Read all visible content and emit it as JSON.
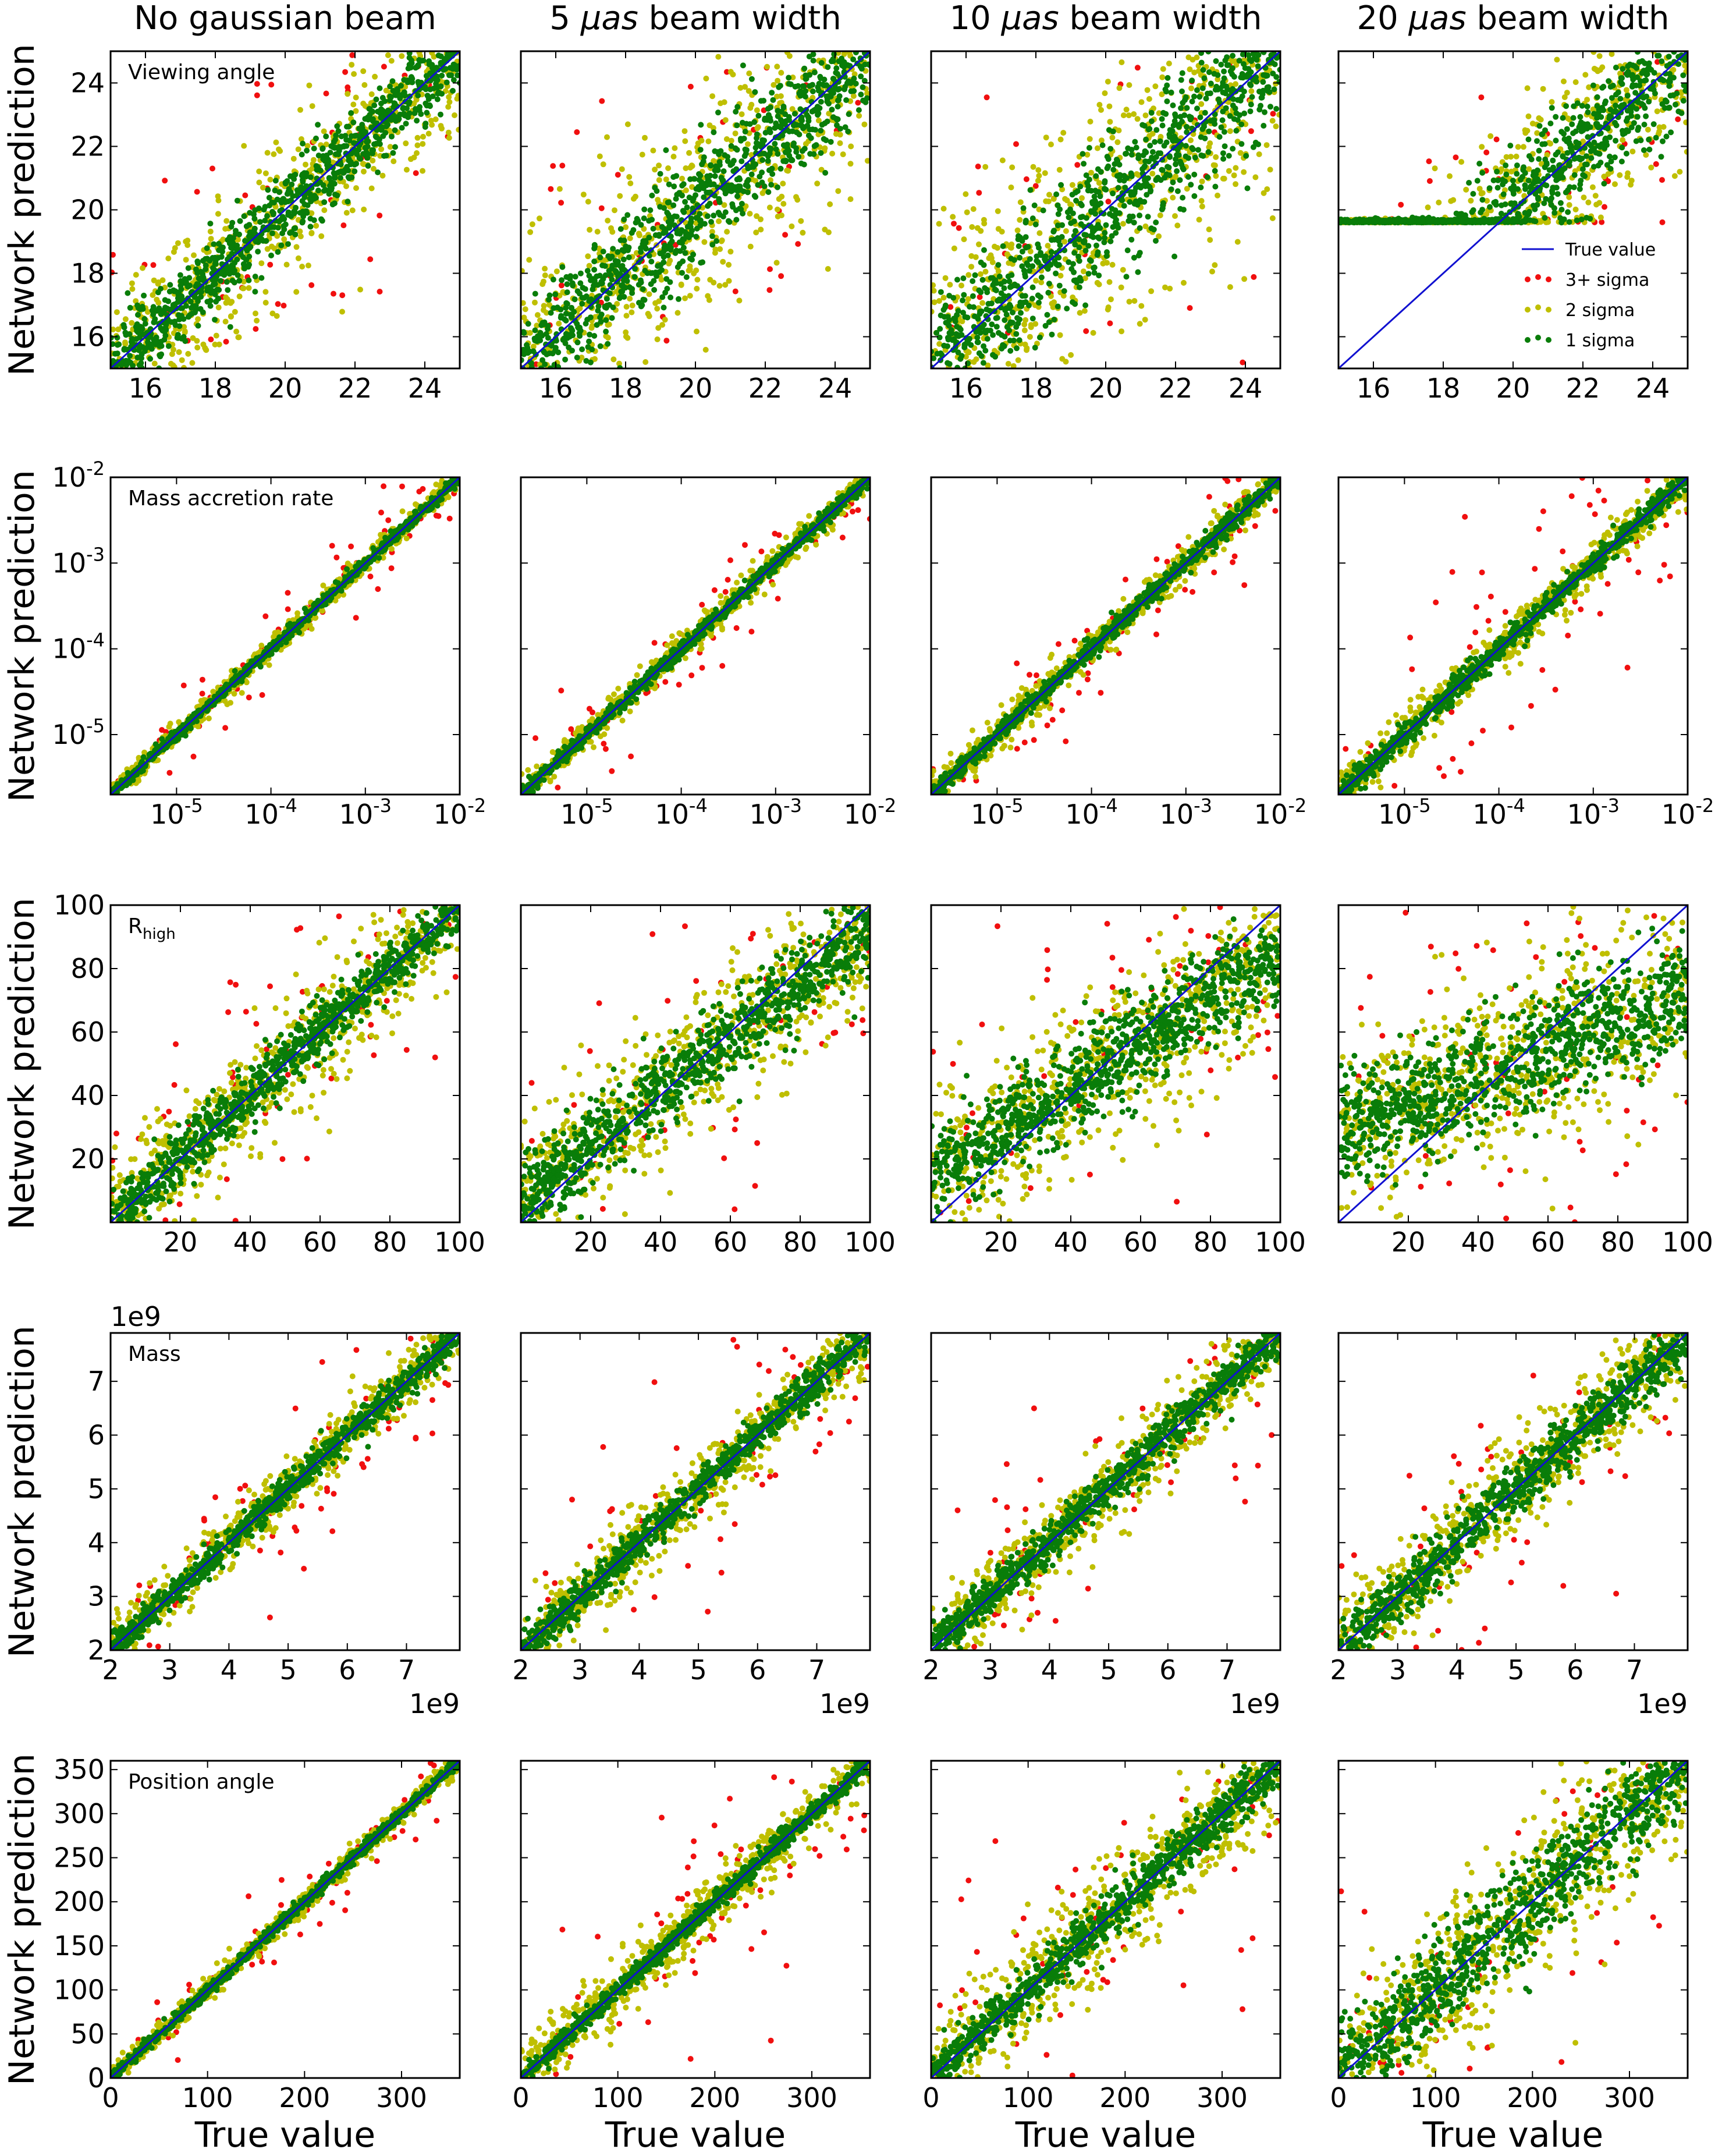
{
  "figure": {
    "column_titles": [
      {
        "pre": "No gaussian beam",
        "mu": "",
        "post": ""
      },
      {
        "pre": "5 ",
        "mu": "μas",
        "post": " beam width"
      },
      {
        "pre": "10 ",
        "mu": "μas",
        "post": " beam width"
      },
      {
        "pre": "20 ",
        "mu": "μas",
        "post": " beam width"
      }
    ],
    "ylabel": "Network prediction",
    "xlabel": "True value",
    "colors": {
      "three_sigma": "#f00f0f",
      "two_sigma": "#bfbf00",
      "one_sigma": "#097d09",
      "true_value": "#1010d0"
    },
    "legend": {
      "panel": "row0-col3",
      "entries": [
        {
          "label": "True value",
          "kind": "line",
          "color_key": "true_value"
        },
        {
          "label": "3+ sigma",
          "kind": "dots",
          "color_key": "three_sigma"
        },
        {
          "label": "2 sigma",
          "kind": "dots",
          "color_key": "two_sigma"
        },
        {
          "label": "1 sigma",
          "kind": "dots",
          "color_key": "one_sigma"
        }
      ]
    }
  },
  "chart_data": [
    {
      "type": "scatter",
      "parameter": "Viewing angle",
      "panel_label": "Viewing angle",
      "scale": "linear",
      "xlim": [
        15,
        25
      ],
      "ylim": [
        15,
        25
      ],
      "xticks": [
        16,
        18,
        20,
        22,
        24
      ],
      "xtick_labels": [
        "16",
        "18",
        "20",
        "22",
        "24"
      ],
      "yticks": [
        16,
        18,
        20,
        22,
        24
      ],
      "ytick_labels": [
        "16",
        "18",
        "20",
        "22",
        "24"
      ],
      "offset_label": "",
      "true_value_line": [
        [
          15,
          15
        ],
        [
          25,
          25
        ]
      ],
      "beam_widths_uas": [
        0,
        5,
        10,
        20
      ],
      "spread": {
        "one_sigma": [
          1.0,
          1.6,
          1.9,
          1.6
        ],
        "two_sigma": [
          2.1,
          3.2,
          3.6,
          2.6
        ],
        "three_sigma": [
          3.3,
          4.6,
          4.8,
          3.0
        ]
      },
      "prediction_floor": [
        null,
        null,
        null,
        19.6
      ]
    },
    {
      "type": "scatter",
      "parameter": "Mass accretion rate",
      "panel_label": "Mass accretion rate",
      "scale": "log",
      "xlim": [
        2e-06,
        0.01
      ],
      "ylim": [
        2e-06,
        0.01
      ],
      "xticks": [
        1e-05,
        0.0001,
        0.001,
        0.01
      ],
      "xtick_labels": [
        "10-5",
        "10-4",
        "10-3",
        "10-2"
      ],
      "yticks": [
        1e-05,
        0.0001,
        0.001,
        0.01
      ],
      "ytick_labels": [
        "10-5",
        "10-4",
        "10-3",
        "10-2"
      ],
      "offset_label": "",
      "true_value_line": [
        [
          2e-06,
          2e-06
        ],
        [
          0.01,
          0.01
        ]
      ],
      "beam_widths_uas": [
        0,
        5,
        10,
        20
      ],
      "spread_dex": {
        "one_sigma": [
          0.06,
          0.08,
          0.1,
          0.12
        ],
        "two_sigma": [
          0.13,
          0.15,
          0.2,
          0.25
        ],
        "three_sigma": [
          0.25,
          0.3,
          0.35,
          0.8
        ]
      }
    },
    {
      "type": "scatter",
      "parameter": "R_high",
      "panel_label": "R",
      "panel_label_sub": "high",
      "scale": "linear",
      "xlim": [
        0,
        100
      ],
      "ylim": [
        0,
        100
      ],
      "xticks": [
        20,
        40,
        60,
        80,
        100
      ],
      "xtick_labels": [
        "20",
        "40",
        "60",
        "80",
        "100"
      ],
      "yticks": [
        20,
        40,
        60,
        80,
        100
      ],
      "ytick_labels": [
        "20",
        "40",
        "60",
        "80",
        "100"
      ],
      "offset_label": "",
      "true_value_line": [
        [
          0,
          0
        ],
        [
          100,
          100
        ]
      ],
      "beam_widths_uas": [
        0,
        5,
        10,
        20
      ],
      "spread": {
        "one_sigma": [
          8,
          12,
          14,
          16
        ],
        "two_sigma": [
          18,
          22,
          24,
          26
        ],
        "three_sigma": [
          30,
          34,
          36,
          38
        ]
      },
      "prediction_compression": [
        0.0,
        0.15,
        0.3,
        0.55
      ]
    },
    {
      "type": "scatter",
      "parameter": "Mass",
      "panel_label": "Mass",
      "scale": "linear",
      "xlim": [
        2000000000.0,
        7900000000.0
      ],
      "ylim": [
        2000000000.0,
        7900000000.0
      ],
      "xticks": [
        2000000000.0,
        3000000000.0,
        4000000000.0,
        5000000000.0,
        6000000000.0,
        7000000000.0
      ],
      "xtick_labels": [
        "2",
        "3",
        "4",
        "5",
        "6",
        "7"
      ],
      "yticks": [
        2000000000.0,
        3000000000.0,
        4000000000.0,
        5000000000.0,
        6000000000.0,
        7000000000.0
      ],
      "ytick_labels": [
        "2",
        "3",
        "4",
        "5",
        "6",
        "7"
      ],
      "offset_label": "1e9",
      "true_value_line": [
        [
          2000000000.0,
          2000000000.0
        ],
        [
          7900000000.0,
          7900000000.0
        ]
      ],
      "beam_widths_uas": [
        0,
        5,
        10,
        20
      ],
      "spread": {
        "one_sigma": [
          250000000.0,
          300000000.0,
          350000000.0,
          450000000.0
        ],
        "two_sigma": [
          500000000.0,
          600000000.0,
          700000000.0,
          900000000.0
        ],
        "three_sigma": [
          900000000.0,
          1100000000.0,
          1200000000.0,
          1500000000.0
        ]
      }
    },
    {
      "type": "scatter",
      "parameter": "Position angle",
      "panel_label": "Position angle",
      "scale": "linear",
      "xlim": [
        0,
        360
      ],
      "ylim": [
        0,
        360
      ],
      "xticks": [
        0,
        100,
        200,
        300
      ],
      "xtick_labels": [
        "0",
        "100",
        "200",
        "300"
      ],
      "yticks": [
        0,
        50,
        100,
        150,
        200,
        250,
        300,
        350
      ],
      "ytick_labels": [
        "0",
        "50",
        "100",
        "150",
        "200",
        "250",
        "300",
        "350"
      ],
      "offset_label": "",
      "true_value_line": [
        [
          0,
          0
        ],
        [
          360,
          360
        ]
      ],
      "beam_widths_uas": [
        0,
        5,
        10,
        20
      ],
      "spread": {
        "one_sigma": [
          6,
          10,
          25,
          50
        ],
        "two_sigma": [
          12,
          30,
          60,
          90
        ],
        "three_sigma": [
          25,
          80,
          120,
          140
        ]
      }
    }
  ]
}
